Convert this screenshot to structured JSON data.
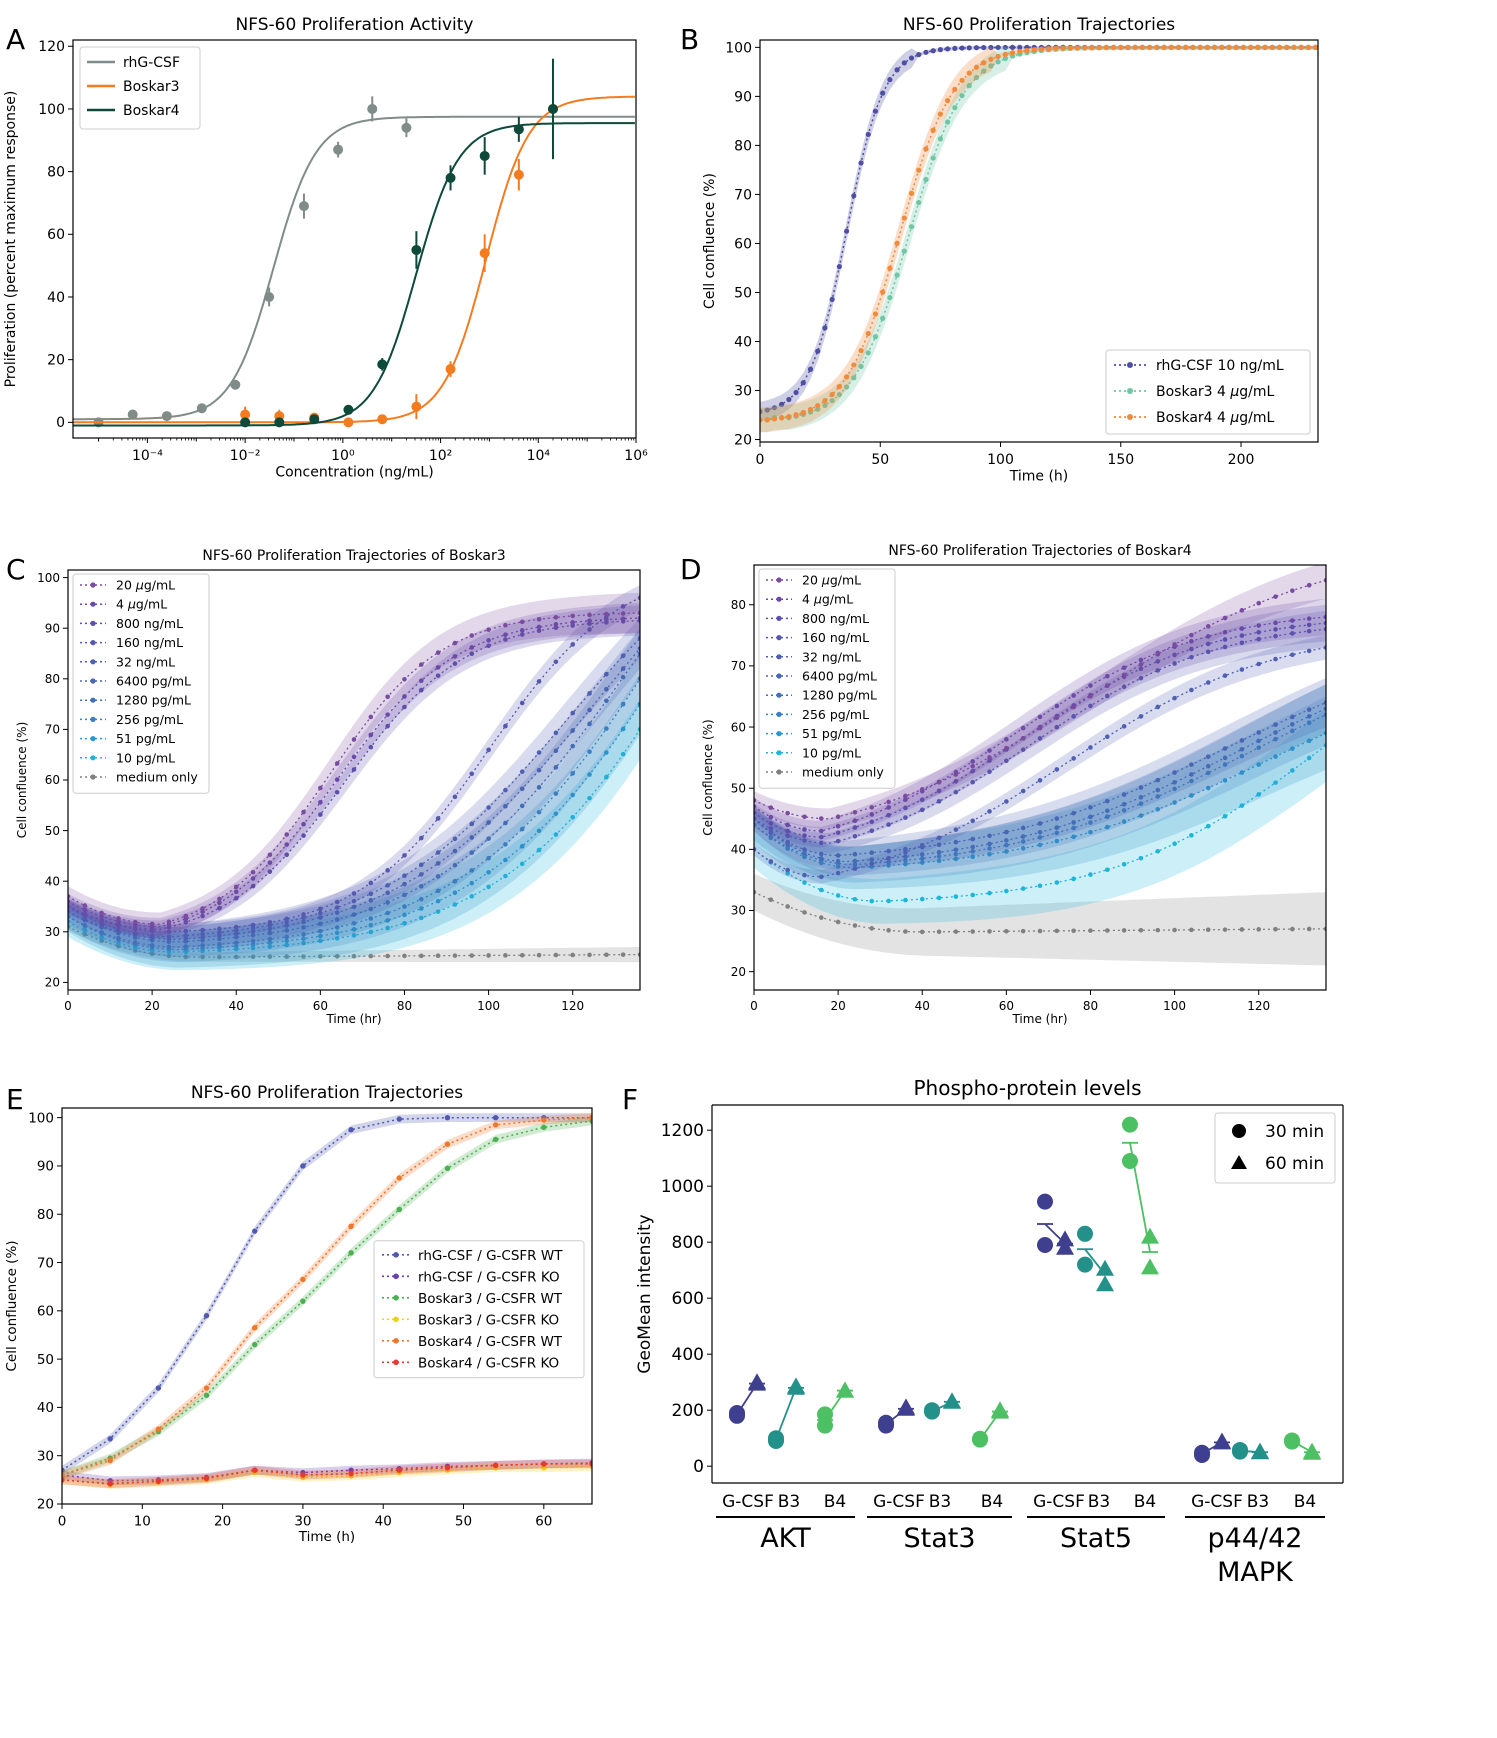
{
  "chart_data": [
    {
      "panel": "A",
      "type": "scatter",
      "title": "NFS-60 Proliferation Activity",
      "xlabel": "Concentration (ng/mL)",
      "ylabel": "Proliferation (percent maximum response)",
      "xscale": "log",
      "xlim": [
        3e-06,
        1000000
      ],
      "ylim": [
        -5,
        122
      ],
      "xtick_labels": [
        "10⁻⁴",
        "10⁻²",
        "10⁰",
        "10²",
        "10⁴",
        "10⁶"
      ],
      "xticks": [
        0.0001,
        0.01,
        1,
        100,
        10000,
        1000000
      ],
      "yticks": [
        0,
        20,
        40,
        60,
        80,
        100,
        120
      ],
      "legend": "top-left",
      "series": [
        {
          "name": "rhG-CSF",
          "color": "#7f8c8a",
          "x": [
            1e-05,
            5e-05,
            0.00025,
            0.0013,
            0.0063,
            0.031,
            0.16,
            0.8,
            4,
            20
          ],
          "y": [
            0,
            2.5,
            2,
            4.5,
            12,
            40,
            69,
            87,
            100,
            94
          ],
          "err": [
            0.5,
            1,
            0.8,
            1,
            1.5,
            3,
            4,
            2.5,
            4,
            3
          ],
          "fit": {
            "bottom": 1,
            "top": 97.5,
            "log_ec50": -1.42,
            "hill": 1.0
          }
        },
        {
          "name": "Boskar3",
          "color": "#f47c20",
          "x": [
            0.01,
            0.05,
            0.26,
            1.3,
            6.4,
            32,
            160,
            800,
            4000,
            20000
          ],
          "y": [
            2.5,
            2,
            1.5,
            0,
            1,
            5,
            17,
            54,
            79,
            100
          ],
          "err": [
            2.5,
            2,
            1.5,
            1,
            1.5,
            4,
            2.5,
            6,
            5,
            16
          ],
          "fit": {
            "bottom": 0,
            "top": 104,
            "log_ec50": 2.93,
            "hill": 1.0
          }
        },
        {
          "name": "Boskar4",
          "color": "#0d4a3a",
          "x": [
            0.01,
            0.05,
            0.26,
            1.3,
            6.4,
            32,
            160,
            800,
            4000,
            20000
          ],
          "y": [
            0,
            0,
            1,
            4,
            18.5,
            55,
            78,
            85,
            93.5,
            100
          ],
          "err": [
            0.6,
            0.6,
            0.8,
            1,
            2,
            6,
            4,
            6,
            4,
            16
          ],
          "fit": {
            "bottom": -1,
            "top": 95.5,
            "log_ec50": 1.5,
            "hill": 1.0
          }
        }
      ]
    },
    {
      "panel": "B",
      "type": "line",
      "title": "NFS-60 Proliferation Trajectories",
      "xlabel": "Time (h)",
      "ylabel": "Cell confluence (%)",
      "xlim": [
        0,
        232
      ],
      "ylim": [
        19.5,
        101.5
      ],
      "xticks": [
        0,
        50,
        100,
        150,
        200
      ],
      "yticks": [
        20,
        30,
        40,
        50,
        60,
        70,
        80,
        90,
        100
      ],
      "legend": "bottom-right",
      "series": [
        {
          "name": "rhG-CSF 10 ng/mL",
          "color": "#4e4ea3",
          "label_prefix": "rhG-CSF 10 ",
          "label_unit": "ng/mL",
          "curve": {
            "bottom": 25,
            "top": 100,
            "t50": 36,
            "k": 0.13,
            "t0": 12,
            "early": [
              25,
              26.5,
              26
            ]
          },
          "band": 2
        },
        {
          "name": "Boskar3 4 μg/mL",
          "color": "#6ec6a4",
          "label_prefix": "Boskar3 4 ",
          "label_unit": "g/mL",
          "curve": {
            "bottom": 23.5,
            "top": 100,
            "t50": 62,
            "k": 0.087,
            "t0": 12,
            "early": [
              24,
              24.5,
              25
            ]
          },
          "band": 2.5
        },
        {
          "name": "Boskar4 4 μg/mL",
          "color": "#f08a3c",
          "label_prefix": "Boskar4 4 ",
          "label_unit": "g/mL",
          "curve": {
            "bottom": 23.5,
            "top": 100,
            "t50": 58,
            "k": 0.09,
            "t0": 12,
            "early": [
              24,
              24,
              24
            ]
          },
          "band": 2.5
        }
      ]
    },
    {
      "panel": "C",
      "type": "line",
      "title": "NFS-60 Proliferation Trajectories of Boskar3",
      "xlabel": "Time (hr)",
      "ylabel": "Cell confluence (%)",
      "xlim": [
        0,
        136
      ],
      "ylim": [
        18.5,
        101.5
      ],
      "xticks": [
        0,
        20,
        40,
        60,
        80,
        100,
        120
      ],
      "yticks": [
        20,
        30,
        40,
        50,
        60,
        70,
        80,
        90,
        100
      ],
      "legend": "top-left",
      "series": [
        {
          "name": "20 μg/mL",
          "color": "#7a4ca0",
          "label_prefix": "20 ",
          "label_unit": "g/mL",
          "start": 37,
          "min": 31.5,
          "tmin": 22,
          "end": 93,
          "mid": 62,
          "k": 0.075,
          "band": 4
        },
        {
          "name": "4 μg/mL",
          "color": "#6a4aa8",
          "label_prefix": "4 ",
          "label_unit": "g/mL",
          "start": 36,
          "min": 31,
          "tmin": 22,
          "end": 92,
          "mid": 64,
          "k": 0.07,
          "band": 3
        },
        {
          "name": "800 ng/mL",
          "color": "#5d4fae",
          "start": 35,
          "min": 30.5,
          "tmin": 22,
          "end": 91.5,
          "mid": 66,
          "k": 0.07,
          "band": 3
        },
        {
          "name": "160 ng/mL",
          "color": "#5558b0",
          "start": 35,
          "min": 30,
          "tmin": 24,
          "end": 96,
          "mid": 100,
          "k": 0.065,
          "band": 2.5
        },
        {
          "name": "32 ng/mL",
          "color": "#4f5fb3",
          "start": 35,
          "min": 29,
          "tmin": 24,
          "end": 88,
          "mid": 118,
          "k": 0.045,
          "band": 4
        },
        {
          "name": "6400 pg/mL",
          "color": "#4a65b3",
          "start": 34,
          "min": 28.5,
          "tmin": 26,
          "end": 86,
          "mid": 126,
          "k": 0.042,
          "band": 4
        },
        {
          "name": "1280 pg/mL",
          "color": "#4270b8",
          "start": 34,
          "min": 28,
          "tmin": 26,
          "end": 85,
          "mid": 134,
          "k": 0.042,
          "band": 5
        },
        {
          "name": "256 pg/mL",
          "color": "#3a80c0",
          "start": 33,
          "min": 27,
          "tmin": 26,
          "end": 80,
          "mid": 145,
          "k": 0.04,
          "band": 5
        },
        {
          "name": "51 pg/mL",
          "color": "#2a98cf",
          "start": 33,
          "min": 26.5,
          "tmin": 26,
          "end": 75,
          "mid": 150,
          "k": 0.04,
          "band": 6
        },
        {
          "name": "10 pg/mL",
          "color": "#1db6db",
          "start": 32,
          "min": 26,
          "tmin": 26,
          "end": 70,
          "mid": 158,
          "k": 0.04,
          "band": 6
        },
        {
          "name": "medium only",
          "color": "#808080",
          "start": 31,
          "min": 25,
          "tmin": 30,
          "end": 25.5,
          "mid": 999,
          "k": 0.0,
          "band": 1.5
        }
      ]
    },
    {
      "panel": "D",
      "type": "line",
      "title": "NFS-60 Proliferation Trajectories of Boskar4",
      "xlabel": "Time (hr)",
      "ylabel": "Cell confluence (%)",
      "xlim": [
        0,
        136
      ],
      "ylim": [
        17,
        86.5
      ],
      "xticks": [
        0,
        20,
        40,
        60,
        80,
        100,
        120
      ],
      "yticks": [
        20,
        30,
        40,
        50,
        60,
        70,
        80
      ],
      "legend": "top-left",
      "series": [
        {
          "name": "20 μg/mL",
          "color": "#7a4ca0",
          "label_prefix": "20 ",
          "label_unit": "g/mL",
          "start": 48,
          "min": 45,
          "tmin": 18,
          "end": 84,
          "mid": 80,
          "k": 0.035,
          "band": 3
        },
        {
          "name": "4 μg/mL",
          "color": "#6a4aa8",
          "label_prefix": "4 ",
          "label_unit": "g/mL",
          "start": 47,
          "min": 43,
          "tmin": 16,
          "end": 78,
          "mid": 62,
          "k": 0.045,
          "band": 3
        },
        {
          "name": "800 ng/mL",
          "color": "#5d4fae",
          "start": 46,
          "min": 42,
          "tmin": 16,
          "end": 77,
          "mid": 64,
          "k": 0.045,
          "band": 3
        },
        {
          "name": "160 ng/mL",
          "color": "#5558b0",
          "start": 45,
          "min": 41,
          "tmin": 18,
          "end": 76,
          "mid": 66,
          "k": 0.045,
          "band": 3
        },
        {
          "name": "32 ng/mL",
          "color": "#4f5fb3",
          "start": 40,
          "min": 35.5,
          "tmin": 16,
          "end": 73,
          "mid": 74,
          "k": 0.04,
          "band": 2
        },
        {
          "name": "6400 pg/mL",
          "color": "#4a65b3",
          "start": 45,
          "min": 39,
          "tmin": 20,
          "end": 64,
          "mid": 112,
          "k": 0.035,
          "band": 4
        },
        {
          "name": "1280 pg/mL",
          "color": "#4270b8",
          "start": 45,
          "min": 38,
          "tmin": 22,
          "end": 63,
          "mid": 116,
          "k": 0.035,
          "band": 4
        },
        {
          "name": "256 pg/mL",
          "color": "#3a80c0",
          "start": 44,
          "min": 37.5,
          "tmin": 24,
          "end": 62,
          "mid": 118,
          "k": 0.035,
          "band": 5
        },
        {
          "name": "51 pg/mL",
          "color": "#2a98cf",
          "start": 44,
          "min": 37,
          "tmin": 24,
          "end": 59,
          "mid": 122,
          "k": 0.035,
          "band": 6
        },
        {
          "name": "10 pg/mL",
          "color": "#1db6db",
          "start": 40,
          "min": 31.5,
          "tmin": 30,
          "end": 57,
          "mid": 135,
          "k": 0.04,
          "band": 6
        },
        {
          "name": "medium only",
          "color": "#808080",
          "start": 33,
          "min": 26.5,
          "tmin": 40,
          "end": 27,
          "mid": 999,
          "k": 0.0,
          "band": 6
        }
      ]
    },
    {
      "panel": "E",
      "type": "line",
      "title": "NFS-60 Proliferation Trajectories",
      "xlabel": "Time (h)",
      "ylabel": "Cell confluence (%)",
      "xlim": [
        0,
        66
      ],
      "ylim": [
        20,
        102
      ],
      "xticks": [
        0,
        10,
        20,
        30,
        40,
        50,
        60
      ],
      "yticks": [
        20,
        30,
        40,
        50,
        60,
        70,
        80,
        90,
        100
      ],
      "legend": "center-right",
      "x": [
        0,
        6,
        12,
        18,
        24,
        30,
        36,
        42,
        48,
        54,
        60,
        66
      ],
      "series": [
        {
          "name": "rhG-CSF / G-CSFR WT",
          "color": "#5059b0",
          "y": [
            27,
            33.5,
            44,
            59,
            76.5,
            90,
            97.5,
            99.7,
            100,
            100,
            100,
            100
          ]
        },
        {
          "name": "rhG-CSF / G-CSFR KO",
          "color": "#6a3fb0",
          "y": [
            26,
            24.8,
            25,
            25.5,
            27,
            26.5,
            27,
            27.3,
            27.8,
            28,
            28.3,
            28.5
          ]
        },
        {
          "name": "Boskar3 / G-CSFR WT",
          "color": "#4cb050",
          "y": [
            26,
            29.5,
            35,
            42.5,
            53,
            62,
            72,
            81,
            89.5,
            95.5,
            98,
            99.3
          ]
        },
        {
          "name": "Boskar3 / G-CSFR KO",
          "color": "#f2d11c",
          "y": [
            25,
            24,
            24.5,
            25,
            26.5,
            25.5,
            25.8,
            26.5,
            27,
            27.5,
            27.5,
            27.8
          ]
        },
        {
          "name": "Boskar4 / G-CSFR WT",
          "color": "#f0762a",
          "y": [
            26,
            29,
            35.5,
            44,
            56.5,
            66.5,
            77.5,
            87.5,
            94.5,
            98.5,
            99.5,
            100
          ]
        },
        {
          "name": "Boskar4 / G-CSFR KO",
          "color": "#e53a30",
          "y": [
            25,
            24.2,
            24.7,
            25.3,
            27,
            26,
            26.3,
            27,
            27.5,
            28,
            28.3,
            28.3
          ]
        }
      ]
    },
    {
      "panel": "F",
      "type": "scatter",
      "title": "Phospho-protein levels",
      "xlabel": "",
      "ylabel": "GeoMean intensity",
      "ylim": [
        -60,
        1290
      ],
      "yticks": [
        0,
        200,
        400,
        600,
        800,
        1000,
        1200
      ],
      "legend": "top-right",
      "legend_entries": [
        "30 min",
        "60 min"
      ],
      "group_colors": {
        "G-CSF": "#3e3f8f",
        "B3": "#23918a",
        "B4": "#4cc062"
      },
      "groups": [
        {
          "name": "AKT",
          "cats": [
            "G-CSF",
            "B3",
            "B4"
          ],
          "mean30": [
            185,
            95,
            165
          ],
          "mean60": [
            295,
            280,
            270
          ],
          "pts30": [
            [
              180,
              190
            ],
            [
              90,
              100
            ],
            [
              145,
              185
            ]
          ],
          "pts60": [
            [
              295,
              300
            ],
            [
              280,
              285
            ],
            [
              270,
              270
            ]
          ]
        },
        {
          "name": "Stat3",
          "cats": [
            "G-CSF",
            "B3",
            "B4"
          ],
          "mean30": [
            150,
            195,
            95
          ],
          "mean60": [
            205,
            230,
            195
          ],
          "pts30": [
            [
              145,
              155
            ],
            [
              195,
              200
            ],
            [
              95,
              98
            ]
          ],
          "pts60": [
            [
              205,
              210
            ],
            [
              230,
              232
            ],
            [
              195,
              200
            ]
          ]
        },
        {
          "name": "Stat5",
          "cats": [
            "G-CSF",
            "B3",
            "B4"
          ],
          "mean30": [
            865,
            775,
            1155
          ],
          "mean60": [
            795,
            685,
            765
          ],
          "pts30": [
            [
              945,
              790
            ],
            [
              830,
              720
            ],
            [
              1220,
              1090
            ]
          ],
          "pts60": [
            [
              810,
              780
            ],
            [
              705,
              650
            ],
            [
              820,
              710
            ]
          ]
        },
        {
          "name": "p44/42 MAPK",
          "name_lines": [
            "p44/42",
            "MAPK"
          ],
          "cats": [
            "G-CSF",
            "B3",
            "B4"
          ],
          "mean30": [
            45,
            55,
            90
          ],
          "mean60": [
            85,
            50,
            50
          ],
          "pts30": [
            [
              40,
              48
            ],
            [
              52,
              58
            ],
            [
              88,
              92
            ]
          ],
          "pts60": [
            [
              85,
              88
            ],
            [
              50,
              52
            ],
            [
              48,
              52
            ]
          ]
        }
      ]
    }
  ],
  "panel_letters": [
    "A",
    "B",
    "C",
    "D",
    "E",
    "F"
  ]
}
